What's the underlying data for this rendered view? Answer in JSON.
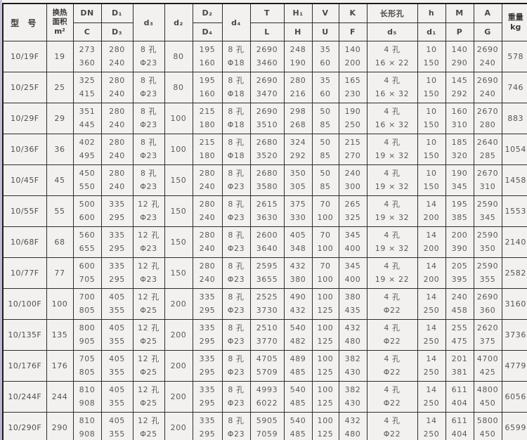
{
  "table": {
    "header": {
      "model": "型 号",
      "area_lines": [
        "换热",
        "面积",
        "m²"
      ],
      "weight_lines": [
        "重量",
        "kg"
      ],
      "columns": [
        {
          "key": "dn",
          "top": "DN",
          "bottom": "C"
        },
        {
          "key": "d1",
          "top": "D₁",
          "bottom": "D₃"
        },
        {
          "key": "d3",
          "top": "d₃"
        },
        {
          "key": "d2",
          "top": "d₂"
        },
        {
          "key": "D2",
          "top": "D₂",
          "bottom": "D₄"
        },
        {
          "key": "d4",
          "top": "d₄"
        },
        {
          "key": "T",
          "top": "T",
          "bottom": "L"
        },
        {
          "key": "H1",
          "top": "H₁",
          "bottom": "H"
        },
        {
          "key": "V",
          "top": "V",
          "bottom": "U"
        },
        {
          "key": "K",
          "top": "K",
          "bottom": "F"
        },
        {
          "key": "hole",
          "top": "长形孔",
          "bottom": "d₅"
        },
        {
          "key": "h",
          "top": "h",
          "bottom": "d₁"
        },
        {
          "key": "M",
          "top": "M",
          "bottom": "P"
        },
        {
          "key": "A",
          "top": "A",
          "bottom": "G"
        }
      ]
    },
    "rows": [
      {
        "model": "10/19F",
        "area": "19",
        "weight": "578",
        "cells": {
          "dn": [
            "273",
            "360"
          ],
          "d1": [
            "280",
            "240"
          ],
          "d3": [
            "8 孔",
            "Φ23"
          ],
          "d2": [
            "80"
          ],
          "D2": [
            "195",
            "160"
          ],
          "d4": [
            "8 孔",
            "Φ18"
          ],
          "T": [
            "2690",
            "3460"
          ],
          "H1": [
            "248",
            "190"
          ],
          "V": [
            "35",
            "60"
          ],
          "K": [
            "140",
            "200"
          ],
          "hole": [
            "4 孔",
            "16 × 22"
          ],
          "h": [
            "10",
            "150"
          ],
          "M": [
            "140",
            "290"
          ],
          "A": [
            "2690",
            "240"
          ]
        }
      },
      {
        "model": "10/25F",
        "area": "25",
        "weight": "746",
        "cells": {
          "dn": [
            "325",
            "415"
          ],
          "d1": [
            "280",
            "240"
          ],
          "d3": [
            "8 孔",
            "Φ23"
          ],
          "d2": [
            "80"
          ],
          "D2": [
            "195",
            "160"
          ],
          "d4": [
            "8 孔",
            "Φ18"
          ],
          "T": [
            "2690",
            "3470"
          ],
          "H1": [
            "280",
            "216"
          ],
          "V": [
            "35",
            "60"
          ],
          "K": [
            "165",
            "230"
          ],
          "hole": [
            "4 孔",
            "16 × 32"
          ],
          "h": [
            "10",
            "150"
          ],
          "M": [
            "145",
            "292"
          ],
          "A": [
            "2690",
            "240"
          ]
        }
      },
      {
        "model": "10/29F",
        "area": "29",
        "weight": "883",
        "cells": {
          "dn": [
            "351",
            "445"
          ],
          "d1": [
            "280",
            "240"
          ],
          "d3": [
            "8 孔",
            "Φ23"
          ],
          "d2": [
            "100"
          ],
          "D2": [
            "215",
            "180"
          ],
          "d4": [
            "8 孔",
            "Φ18"
          ],
          "T": [
            "2690",
            "3510"
          ],
          "H1": [
            "298",
            "268"
          ],
          "V": [
            "50",
            "85"
          ],
          "K": [
            "190",
            "250"
          ],
          "hole": [
            "4 孔",
            "16 × 32"
          ],
          "h": [
            "10",
            "150"
          ],
          "M": [
            "160",
            "310"
          ],
          "A": [
            "2670",
            "280"
          ]
        }
      },
      {
        "model": "10/36F",
        "area": "36",
        "weight": "1054",
        "cells": {
          "dn": [
            "402",
            "495"
          ],
          "d1": [
            "280",
            "240"
          ],
          "d3": [
            "8 孔",
            "Φ23"
          ],
          "d2": [
            "100"
          ],
          "D2": [
            "215",
            "180"
          ],
          "d4": [
            "8 孔",
            "Φ18"
          ],
          "T": [
            "2680",
            "3520"
          ],
          "H1": [
            "324",
            "292"
          ],
          "V": [
            "50",
            "85"
          ],
          "K": [
            "215",
            "270"
          ],
          "hole": [
            "4 孔",
            "19 × 32"
          ],
          "h": [
            "10",
            "150"
          ],
          "M": [
            "185",
            "320"
          ],
          "A": [
            "2640",
            "285"
          ]
        }
      },
      {
        "model": "10/45F",
        "area": "45",
        "weight": "1458",
        "cells": {
          "dn": [
            "450",
            "550"
          ],
          "d1": [
            "280",
            "240"
          ],
          "d3": [
            "8 孔",
            "Φ23"
          ],
          "d2": [
            "150"
          ],
          "D2": [
            "280",
            "240"
          ],
          "d4": [
            "8 孔",
            "Φ23"
          ],
          "T": [
            "2680",
            "3580"
          ],
          "H1": [
            "350",
            "305"
          ],
          "V": [
            "50",
            "85"
          ],
          "K": [
            "240",
            "300"
          ],
          "hole": [
            "4 孔",
            "19 × 32"
          ],
          "h": [
            "10",
            "150"
          ],
          "M": [
            "190",
            "345"
          ],
          "A": [
            "2670",
            "310"
          ]
        }
      },
      {
        "model": "10/55F",
        "area": "55",
        "weight": "1553",
        "cells": {
          "dn": [
            "500",
            "600"
          ],
          "d1": [
            "335",
            "295"
          ],
          "d3": [
            "12 孔",
            "Φ23"
          ],
          "d2": [
            "150"
          ],
          "D2": [
            "280",
            "240"
          ],
          "d4": [
            "8 孔",
            "Φ23"
          ],
          "T": [
            "2615",
            "3630"
          ],
          "H1": [
            "375",
            "330"
          ],
          "V": [
            "70",
            "100"
          ],
          "K": [
            "265",
            "325"
          ],
          "hole": [
            "4 孔",
            "19 × 32"
          ],
          "h": [
            "14",
            "200"
          ],
          "M": [
            "195",
            "385"
          ],
          "A": [
            "2590",
            "345"
          ]
        }
      },
      {
        "model": "10/68F",
        "area": "68",
        "weight": "2140",
        "cells": {
          "dn": [
            "560",
            "655"
          ],
          "d1": [
            "335",
            "295"
          ],
          "d3": [
            "12 孔",
            "Φ23"
          ],
          "d2": [
            "150"
          ],
          "D2": [
            "280",
            "240"
          ],
          "d4": [
            "8 孔",
            "Φ23"
          ],
          "T": [
            "2600",
            "3640"
          ],
          "H1": [
            "405",
            "348"
          ],
          "V": [
            "70",
            "100"
          ],
          "K": [
            "345",
            "400"
          ],
          "hole": [
            "4 孔",
            "19 × 32"
          ],
          "h": [
            "14",
            "200"
          ],
          "M": [
            "200",
            "390"
          ],
          "A": [
            "2590",
            "350"
          ]
        }
      },
      {
        "model": "10/77F",
        "area": "77",
        "weight": "2582",
        "cells": {
          "dn": [
            "600",
            "705"
          ],
          "d1": [
            "335",
            "295"
          ],
          "d3": [
            "12 孔",
            "Φ23"
          ],
          "d2": [
            "150"
          ],
          "D2": [
            "280",
            "240"
          ],
          "d4": [
            "8 孔",
            "Φ23"
          ],
          "T": [
            "2595",
            "3655"
          ],
          "H1": [
            "432",
            "380"
          ],
          "V": [
            "70",
            "100"
          ],
          "K": [
            "345",
            "400"
          ],
          "hole": [
            "4 孔",
            "19 × 22"
          ],
          "h": [
            "14",
            "200"
          ],
          "M": [
            "205",
            "395"
          ],
          "A": [
            "2590",
            "355"
          ]
        }
      },
      {
        "model": "10/100F",
        "area": "100",
        "weight": "3160",
        "cells": {
          "dn": [
            "700",
            "805"
          ],
          "d1": [
            "405",
            "355"
          ],
          "d3": [
            "12 孔",
            "Φ25"
          ],
          "d2": [
            "200"
          ],
          "D2": [
            "335",
            "295"
          ],
          "d4": [
            "8 孔",
            "Φ23"
          ],
          "T": [
            "2525",
            "3730"
          ],
          "H1": [
            "490",
            "432"
          ],
          "V": [
            "100",
            "125"
          ],
          "K": [
            "380",
            "435"
          ],
          "hole": [
            "4 孔",
            "Φ22"
          ],
          "h": [
            "14",
            "250"
          ],
          "M": [
            "240",
            "458"
          ],
          "A": [
            "2690",
            "360"
          ]
        }
      },
      {
        "model": "10/135F",
        "area": "135",
        "weight": "3736",
        "cells": {
          "dn": [
            "800",
            "905"
          ],
          "d1": [
            "405",
            "355"
          ],
          "d3": [
            "12 孔",
            "Φ25"
          ],
          "d2": [
            "200"
          ],
          "D2": [
            "335",
            "295"
          ],
          "d4": [
            "8 孔",
            "Φ23"
          ],
          "T": [
            "2510",
            "3770"
          ],
          "H1": [
            "540",
            "482"
          ],
          "V": [
            "100",
            "125"
          ],
          "K": [
            "432",
            "480"
          ],
          "hole": [
            "4 孔",
            "Φ22"
          ],
          "h": [
            "14",
            "250"
          ],
          "M": [
            "255",
            "475"
          ],
          "A": [
            "2620",
            "375"
          ]
        }
      },
      {
        "model": "10/176F",
        "area": "176",
        "weight": "4779",
        "cells": {
          "dn": [
            "705",
            "805"
          ],
          "d1": [
            "405",
            "355"
          ],
          "d3": [
            "12 孔",
            "Φ25"
          ],
          "d2": [
            "200"
          ],
          "D2": [
            "335",
            "295"
          ],
          "d4": [
            "8 孔",
            "Φ23"
          ],
          "T": [
            "4705",
            "5709"
          ],
          "H1": [
            "489",
            "485"
          ],
          "V": [
            "100",
            "125"
          ],
          "K": [
            "382",
            "430"
          ],
          "hole": [
            "4 孔",
            "Φ22"
          ],
          "h": [
            "14",
            "250"
          ],
          "M": [
            "201",
            "381"
          ],
          "A": [
            "4700",
            "425"
          ]
        }
      },
      {
        "model": "10/244F",
        "area": "244",
        "weight": "6056",
        "cells": {
          "dn": [
            "810",
            "908"
          ],
          "d1": [
            "405",
            "355"
          ],
          "d3": [
            "12 孔",
            "Φ25"
          ],
          "d2": [
            "200"
          ],
          "D2": [
            "335",
            "295"
          ],
          "d4": [
            "8 孔",
            "Φ23"
          ],
          "T": [
            "4993",
            "6022"
          ],
          "H1": [
            "540",
            "485"
          ],
          "V": [
            "100",
            "125"
          ],
          "K": [
            "382",
            "430"
          ],
          "hole": [
            "4 孔",
            "Φ22"
          ],
          "h": [
            "14",
            "250"
          ],
          "M": [
            "611",
            "404"
          ],
          "A": [
            "4800",
            "450"
          ]
        }
      },
      {
        "model": "10/290F",
        "area": "290",
        "weight": "6599",
        "cells": {
          "dn": [
            "810",
            "908"
          ],
          "d1": [
            "405",
            "355"
          ],
          "d3": [
            "12 孔",
            "Φ25"
          ],
          "d2": [
            "200"
          ],
          "D2": [
            "335",
            "295"
          ],
          "d4": [
            "8 孔",
            "Φ23"
          ],
          "T": [
            "5905",
            "7059"
          ],
          "H1": [
            "540",
            "485"
          ],
          "V": [
            "100",
            "125"
          ],
          "K": [
            "432",
            "480"
          ],
          "hole": [
            "4 孔",
            "Φ22"
          ],
          "h": [
            "14",
            "250"
          ],
          "M": [
            "611",
            "404"
          ],
          "A": [
            "5800",
            "450"
          ]
        }
      }
    ]
  }
}
